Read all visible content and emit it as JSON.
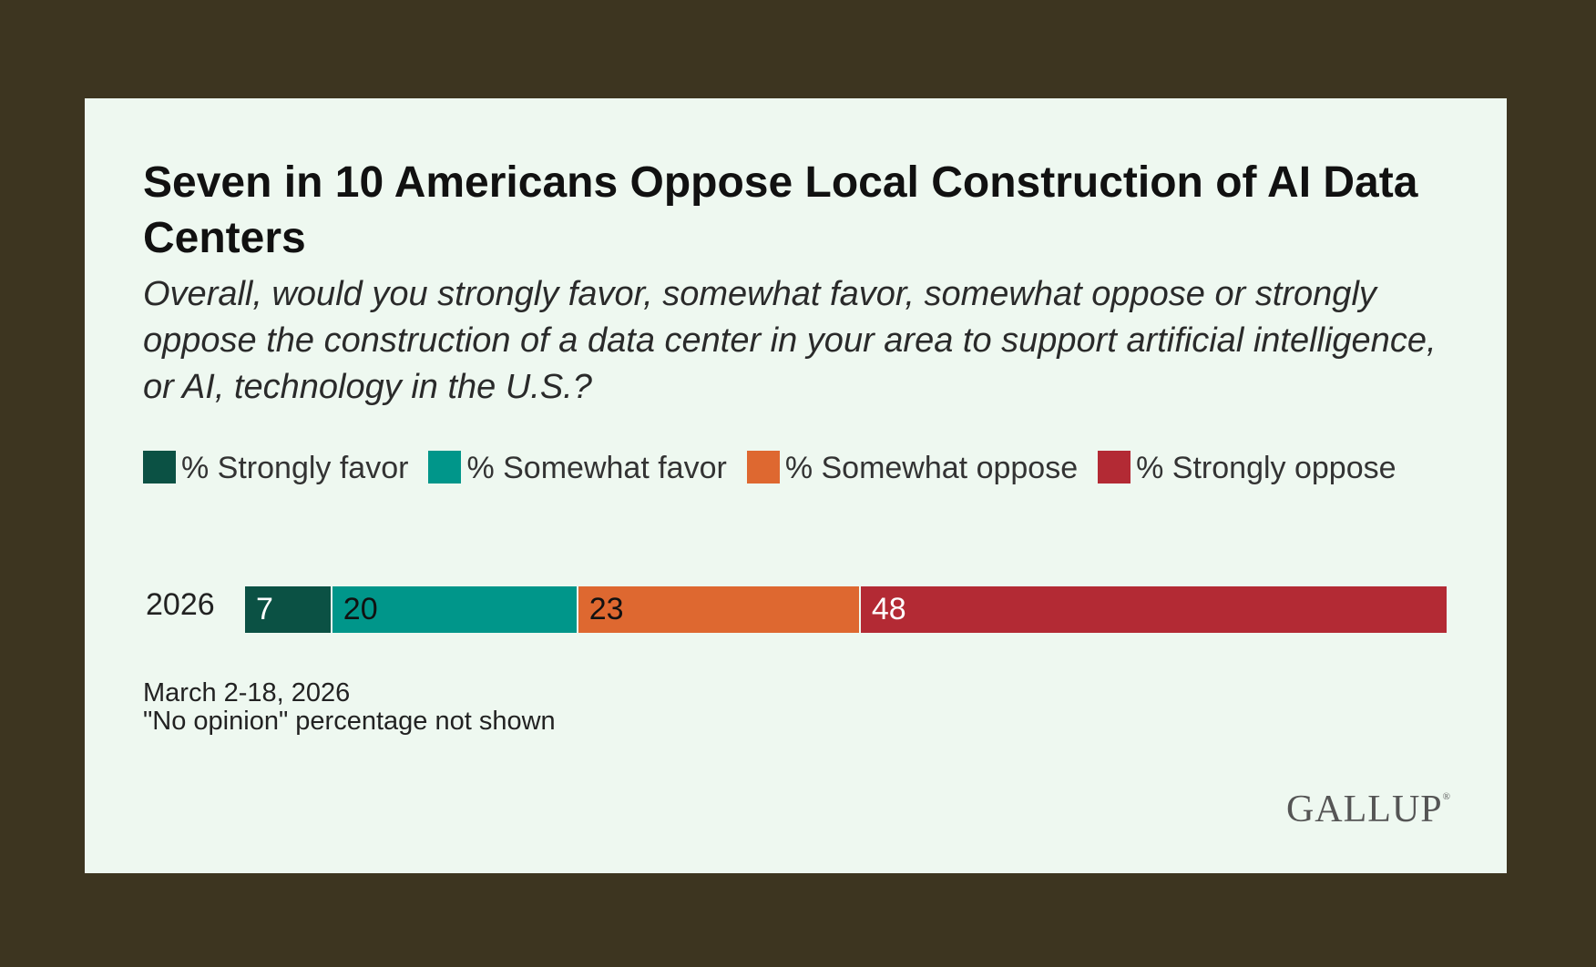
{
  "colors": {
    "background": "#3d3520",
    "card": "#eef8f0",
    "strongly_favor": "#0b5144",
    "somewhat_favor": "#00968a",
    "somewhat_oppose": "#de6830",
    "strongly_oppose": "#b32a34"
  },
  "chart_data": {
    "type": "bar",
    "stacked": true,
    "orientation": "horizontal",
    "title": "Seven in 10 Americans Oppose Local Construction of AI Data Centers",
    "subtitle": "Overall, would you strongly favor, somewhat favor, somewhat oppose or strongly oppose the construction of a data center in your area to support artificial intelligence, or AI, technology in the U.S.?",
    "categories": [
      "2026"
    ],
    "series": [
      {
        "name": "% Strongly favor",
        "values": [
          7
        ],
        "color": "#0b5144",
        "label_color": "#ffffff"
      },
      {
        "name": "% Somewhat favor",
        "values": [
          20
        ],
        "color": "#00968a",
        "label_color": "#111111"
      },
      {
        "name": "% Somewhat oppose",
        "values": [
          23
        ],
        "color": "#de6830",
        "label_color": "#111111"
      },
      {
        "name": "% Strongly oppose",
        "values": [
          48
        ],
        "color": "#b32a34",
        "label_color": "#ffffff"
      }
    ],
    "legend_position": "top",
    "grid": false
  },
  "notes": {
    "date": "March 2-18, 2026",
    "footnote": "\"No opinion\" percentage not shown"
  },
  "logo": {
    "text": "GALLUP",
    "mark": "®"
  }
}
